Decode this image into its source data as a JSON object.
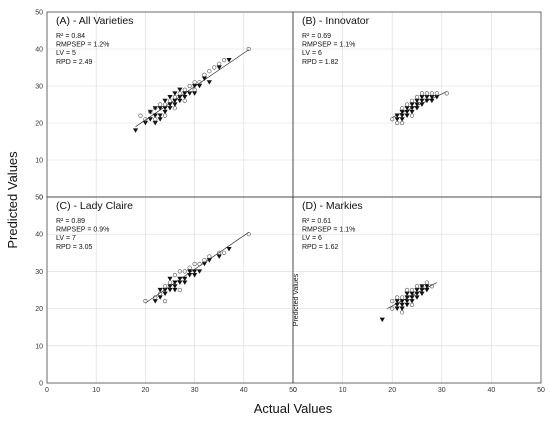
{
  "figure": {
    "xlabel": "Actual Values",
    "ylabel": "Predicted Values",
    "xlim": [
      0,
      50
    ],
    "ylim": [
      0,
      50
    ],
    "ticks": [
      0,
      10,
      20,
      30,
      40,
      50
    ],
    "grid": true
  },
  "chart_data": [
    {
      "type": "scatter",
      "title": "(A) - All Varieties",
      "stats": [
        "R² = 0.84",
        "RMPSEP = 1.2%",
        "LV = 5",
        "RPD = 2.49"
      ],
      "fit_line": {
        "x": [
          18,
          41
        ],
        "y": [
          19.0,
          39.8
        ]
      },
      "series": [
        {
          "marker": "triangle-down-filled",
          "points": [
            [
              18,
              18
            ],
            [
              20,
              20
            ],
            [
              21,
              21
            ],
            [
              22,
              20
            ],
            [
              22,
              22
            ],
            [
              23,
              21
            ],
            [
              23,
              22
            ],
            [
              24,
              23
            ],
            [
              24,
              24
            ],
            [
              25,
              24
            ],
            [
              25,
              25
            ],
            [
              26,
              25
            ],
            [
              26,
              26
            ],
            [
              27,
              26
            ],
            [
              27,
              27
            ],
            [
              28,
              27
            ],
            [
              28,
              28
            ],
            [
              29,
              28
            ],
            [
              30,
              28
            ],
            [
              30,
              30
            ],
            [
              31,
              30
            ],
            [
              32,
              32
            ],
            [
              33,
              31
            ],
            [
              35,
              35
            ],
            [
              37,
              37
            ],
            [
              21,
              23
            ],
            [
              22,
              24
            ],
            [
              23,
              24
            ],
            [
              24,
              26
            ],
            [
              25,
              27
            ],
            [
              26,
              28
            ],
            [
              27,
              29
            ]
          ]
        },
        {
          "marker": "circle-open",
          "points": [
            [
              19,
              22
            ],
            [
              20,
              21
            ],
            [
              21,
              23
            ],
            [
              22,
              24
            ],
            [
              23,
              25
            ],
            [
              24,
              25
            ],
            [
              25,
              26
            ],
            [
              26,
              27
            ],
            [
              27,
              28
            ],
            [
              28,
              29
            ],
            [
              29,
              30
            ],
            [
              30,
              31
            ],
            [
              31,
              31
            ],
            [
              32,
              33
            ],
            [
              33,
              34
            ],
            [
              34,
              35
            ],
            [
              35,
              36
            ],
            [
              36,
              37
            ],
            [
              41,
              40
            ],
            [
              22,
              21
            ],
            [
              24,
              22
            ],
            [
              26,
              24
            ],
            [
              28,
              26
            ],
            [
              30,
              29
            ]
          ]
        }
      ]
    },
    {
      "type": "scatter",
      "title": "(B) - Innovator",
      "stats": [
        "R² = 0.69",
        "RMPSEP = 1.1%",
        "LV = 6",
        "RPD = 1.82"
      ],
      "fit_line": {
        "x": [
          20,
          31
        ],
        "y": [
          21.5,
          28.5
        ]
      },
      "series": [
        {
          "marker": "triangle-down-filled",
          "points": [
            [
              21,
              22
            ],
            [
              21,
              21
            ],
            [
              22,
              22
            ],
            [
              22,
              23
            ],
            [
              23,
              22
            ],
            [
              23,
              23
            ],
            [
              23,
              24
            ],
            [
              24,
              23
            ],
            [
              24,
              24
            ],
            [
              24,
              25
            ],
            [
              25,
              24
            ],
            [
              25,
              25
            ],
            [
              25,
              26
            ],
            [
              26,
              25
            ],
            [
              26,
              26
            ],
            [
              27,
              26
            ],
            [
              27,
              27
            ],
            [
              28,
              27
            ],
            [
              28,
              26
            ],
            [
              22,
              21
            ],
            [
              26,
              27
            ],
            [
              29,
              27
            ]
          ]
        },
        {
          "marker": "circle-open",
          "points": [
            [
              20,
              21
            ],
            [
              21,
              20
            ],
            [
              22,
              24
            ],
            [
              23,
              25
            ],
            [
              24,
              26
            ],
            [
              25,
              27
            ],
            [
              26,
              28
            ],
            [
              27,
              28
            ],
            [
              28,
              28
            ],
            [
              29,
              28
            ],
            [
              31,
              28
            ],
            [
              22,
              20
            ],
            [
              24,
              22
            ]
          ]
        }
      ]
    },
    {
      "type": "scatter",
      "title": "(C) - Lady Claire",
      "stats": [
        "R² = 0.89",
        "RMPSEP = 0.9%",
        "LV = 7",
        "RPD = 3.05"
      ],
      "fit_line": {
        "x": [
          20,
          41
        ],
        "y": [
          21.5,
          40.5
        ]
      },
      "series": [
        {
          "marker": "triangle-down-filled",
          "points": [
            [
              22,
              22
            ],
            [
              23,
              23
            ],
            [
              24,
              24
            ],
            [
              24,
              25
            ],
            [
              25,
              25
            ],
            [
              25,
              26
            ],
            [
              26,
              25
            ],
            [
              26,
              26
            ],
            [
              26,
              27
            ],
            [
              27,
              27
            ],
            [
              27,
              28
            ],
            [
              28,
              28
            ],
            [
              28,
              27
            ],
            [
              29,
              29
            ],
            [
              29,
              30
            ],
            [
              30,
              29
            ],
            [
              30,
              30
            ],
            [
              31,
              30
            ],
            [
              32,
              32
            ],
            [
              33,
              33
            ],
            [
              35,
              34
            ],
            [
              37,
              36
            ],
            [
              23,
              25
            ],
            [
              25,
              28
            ]
          ]
        },
        {
          "marker": "circle-open",
          "points": [
            [
              20,
              22
            ],
            [
              22,
              23
            ],
            [
              23,
              24
            ],
            [
              24,
              26
            ],
            [
              25,
              27
            ],
            [
              26,
              29
            ],
            [
              27,
              30
            ],
            [
              28,
              30
            ],
            [
              29,
              31
            ],
            [
              30,
              32
            ],
            [
              31,
              32
            ],
            [
              32,
              33
            ],
            [
              33,
              34
            ],
            [
              35,
              35
            ],
            [
              36,
              35
            ],
            [
              41,
              40
            ],
            [
              24,
              22
            ],
            [
              27,
              25
            ]
          ]
        }
      ]
    },
    {
      "type": "scatter",
      "title": "(D) - Markies",
      "stats": [
        "R² = 0.61",
        "RMPSEP = 1.1%",
        "LV = 6",
        "RPD = 1.62"
      ],
      "inner_ylabel": "Predicted Values",
      "fit_line": {
        "x": [
          19,
          29
        ],
        "y": [
          20.0,
          27.0
        ]
      },
      "series": [
        {
          "marker": "triangle-down-filled",
          "points": [
            [
              18,
              17
            ],
            [
              21,
              20
            ],
            [
              21,
              21
            ],
            [
              22,
              21
            ],
            [
              22,
              22
            ],
            [
              22,
              20
            ],
            [
              23,
              21
            ],
            [
              23,
              22
            ],
            [
              23,
              23
            ],
            [
              24,
              22
            ],
            [
              24,
              23
            ],
            [
              24,
              24
            ],
            [
              25,
              23
            ],
            [
              25,
              24
            ],
            [
              25,
              25
            ],
            [
              26,
              24
            ],
            [
              26,
              25
            ],
            [
              27,
              25
            ],
            [
              27,
              26
            ],
            [
              21,
              22
            ],
            [
              23,
              24
            ],
            [
              26,
              26
            ]
          ]
        },
        {
          "marker": "circle-open",
          "points": [
            [
              20,
              22
            ],
            [
              21,
              23
            ],
            [
              22,
              23
            ],
            [
              23,
              25
            ],
            [
              24,
              25
            ],
            [
              25,
              26
            ],
            [
              26,
              26
            ],
            [
              27,
              27
            ],
            [
              28,
              26
            ],
            [
              22,
              19
            ],
            [
              24,
              21
            ],
            [
              20,
              20
            ]
          ]
        }
      ]
    }
  ]
}
